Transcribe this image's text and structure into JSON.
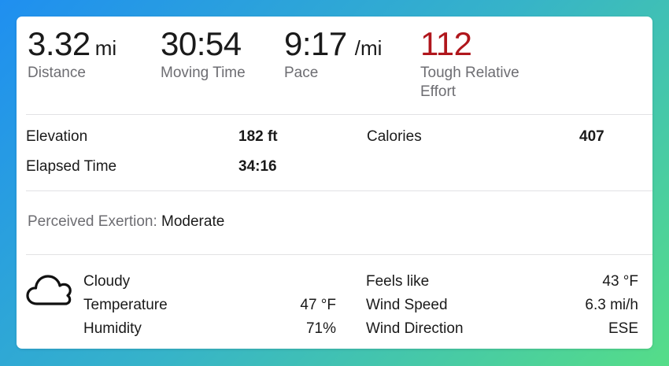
{
  "primary": [
    {
      "value": "3.32",
      "unit": "mi",
      "label": "Distance"
    },
    {
      "value": "30:54",
      "unit": "",
      "label": "Moving Time"
    },
    {
      "value": "9:17",
      "unit": "/mi",
      "label": "Pace"
    },
    {
      "value": "112",
      "unit": "",
      "label_line1": "Tough Relative",
      "label_line2": "Effort",
      "color": "#b0161c"
    }
  ],
  "details": {
    "elevation_label": "Elevation",
    "elevation_value": "182 ft",
    "calories_label": "Calories",
    "calories_value": "407",
    "elapsed_label": "Elapsed Time",
    "elapsed_value": "34:16"
  },
  "exertion": {
    "label": "Perceived Exertion:",
    "value": "Moderate"
  },
  "weather": {
    "icon": "cloud-icon",
    "condition": "Cloudy",
    "temperature_label": "Temperature",
    "temperature_value": "47 °F",
    "humidity_label": "Humidity",
    "humidity_value": "71%",
    "feels_like_label": "Feels like",
    "feels_like_value": "43 °F",
    "wind_speed_label": "Wind Speed",
    "wind_speed_value": "6.3 mi/h",
    "wind_direction_label": "Wind Direction",
    "wind_direction_value": "ESE"
  }
}
